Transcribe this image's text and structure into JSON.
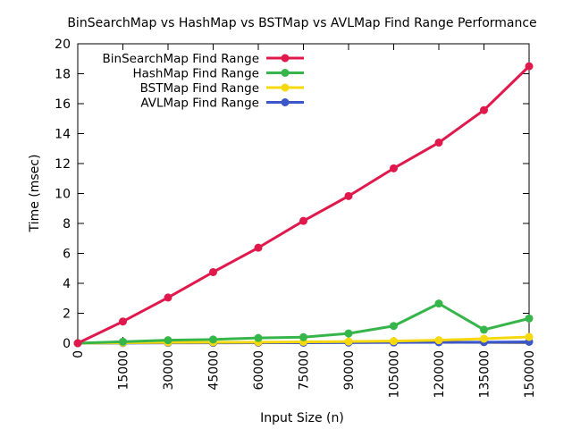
{
  "chart_data": {
    "type": "line",
    "title": "BinSearchMap vs HashMap vs BSTMap vs AVLMap Find Range Performance",
    "xlabel": "Input Size (n)",
    "ylabel": "Time (msec)",
    "x": [
      0,
      15000,
      30000,
      45000,
      60000,
      75000,
      90000,
      105000,
      120000,
      135000,
      150000
    ],
    "xlim": [
      0,
      150000
    ],
    "ylim": [
      0,
      20
    ],
    "yticks": [
      0,
      2,
      4,
      6,
      8,
      10,
      12,
      14,
      16,
      18,
      20
    ],
    "grid": false,
    "legend": "top-left",
    "series": [
      {
        "name": "BinSearchMap Find Range",
        "color": "#e0194d",
        "values": [
          0.0,
          1.45,
          3.05,
          4.75,
          6.38,
          8.17,
          9.83,
          11.68,
          13.4,
          15.57,
          18.5
        ]
      },
      {
        "name": "HashMap Find Range",
        "color": "#36b54a",
        "values": [
          0.0,
          0.1,
          0.2,
          0.25,
          0.35,
          0.4,
          0.65,
          1.15,
          2.65,
          0.9,
          1.65
        ]
      },
      {
        "name": "BSTMap Find Range",
        "color": "#f5d90e",
        "values": [
          0.0,
          0.03,
          0.05,
          0.06,
          0.07,
          0.09,
          0.11,
          0.14,
          0.2,
          0.3,
          0.42
        ]
      },
      {
        "name": "AVLMap Find Range",
        "color": "#3a56c8",
        "values": [
          0.0,
          0.01,
          0.02,
          0.02,
          0.03,
          0.03,
          0.04,
          0.05,
          0.06,
          0.07,
          0.09
        ]
      }
    ]
  }
}
